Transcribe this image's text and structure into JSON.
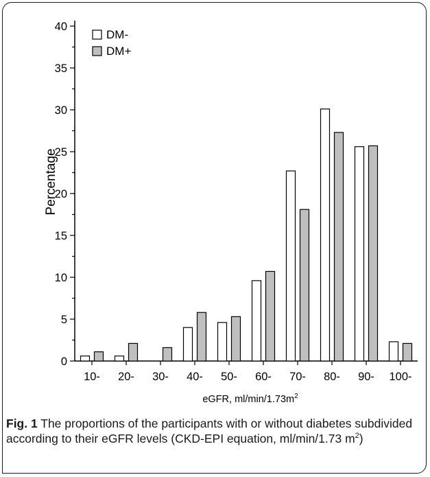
{
  "chart_data": {
    "type": "bar",
    "categories": [
      "10-",
      "20-",
      "30-",
      "40-",
      "50-",
      "60-",
      "70-",
      "80-",
      "90-",
      "100-"
    ],
    "series": [
      {
        "name": "DM-",
        "values": [
          0.6,
          0.6,
          0.0,
          4.0,
          4.6,
          9.6,
          22.7,
          30.1,
          25.6,
          2.3
        ],
        "color": "#ffffff"
      },
      {
        "name": "DM+",
        "values": [
          1.1,
          2.1,
          1.6,
          5.8,
          5.3,
          10.7,
          18.1,
          27.3,
          25.7,
          2.1
        ],
        "color": "#bfbfbf"
      }
    ],
    "ylim": [
      0,
      40
    ],
    "yticks": [
      0,
      5,
      10,
      15,
      20,
      25,
      30,
      35,
      40
    ],
    "ylabel": "Percentage",
    "xlabel_main": "eGFR, ml/min/1.73m",
    "xlabel_sup": "2",
    "legend_position": "top-left",
    "grid": false
  },
  "caption": {
    "label": "Fig. 1",
    "text_main": "The proportions of the participants with or without diabetes subdivided according to their eGFR levels (CKD-EPI equation, ml/min/1.73 m",
    "text_sup": "2",
    "text_end": ")"
  }
}
